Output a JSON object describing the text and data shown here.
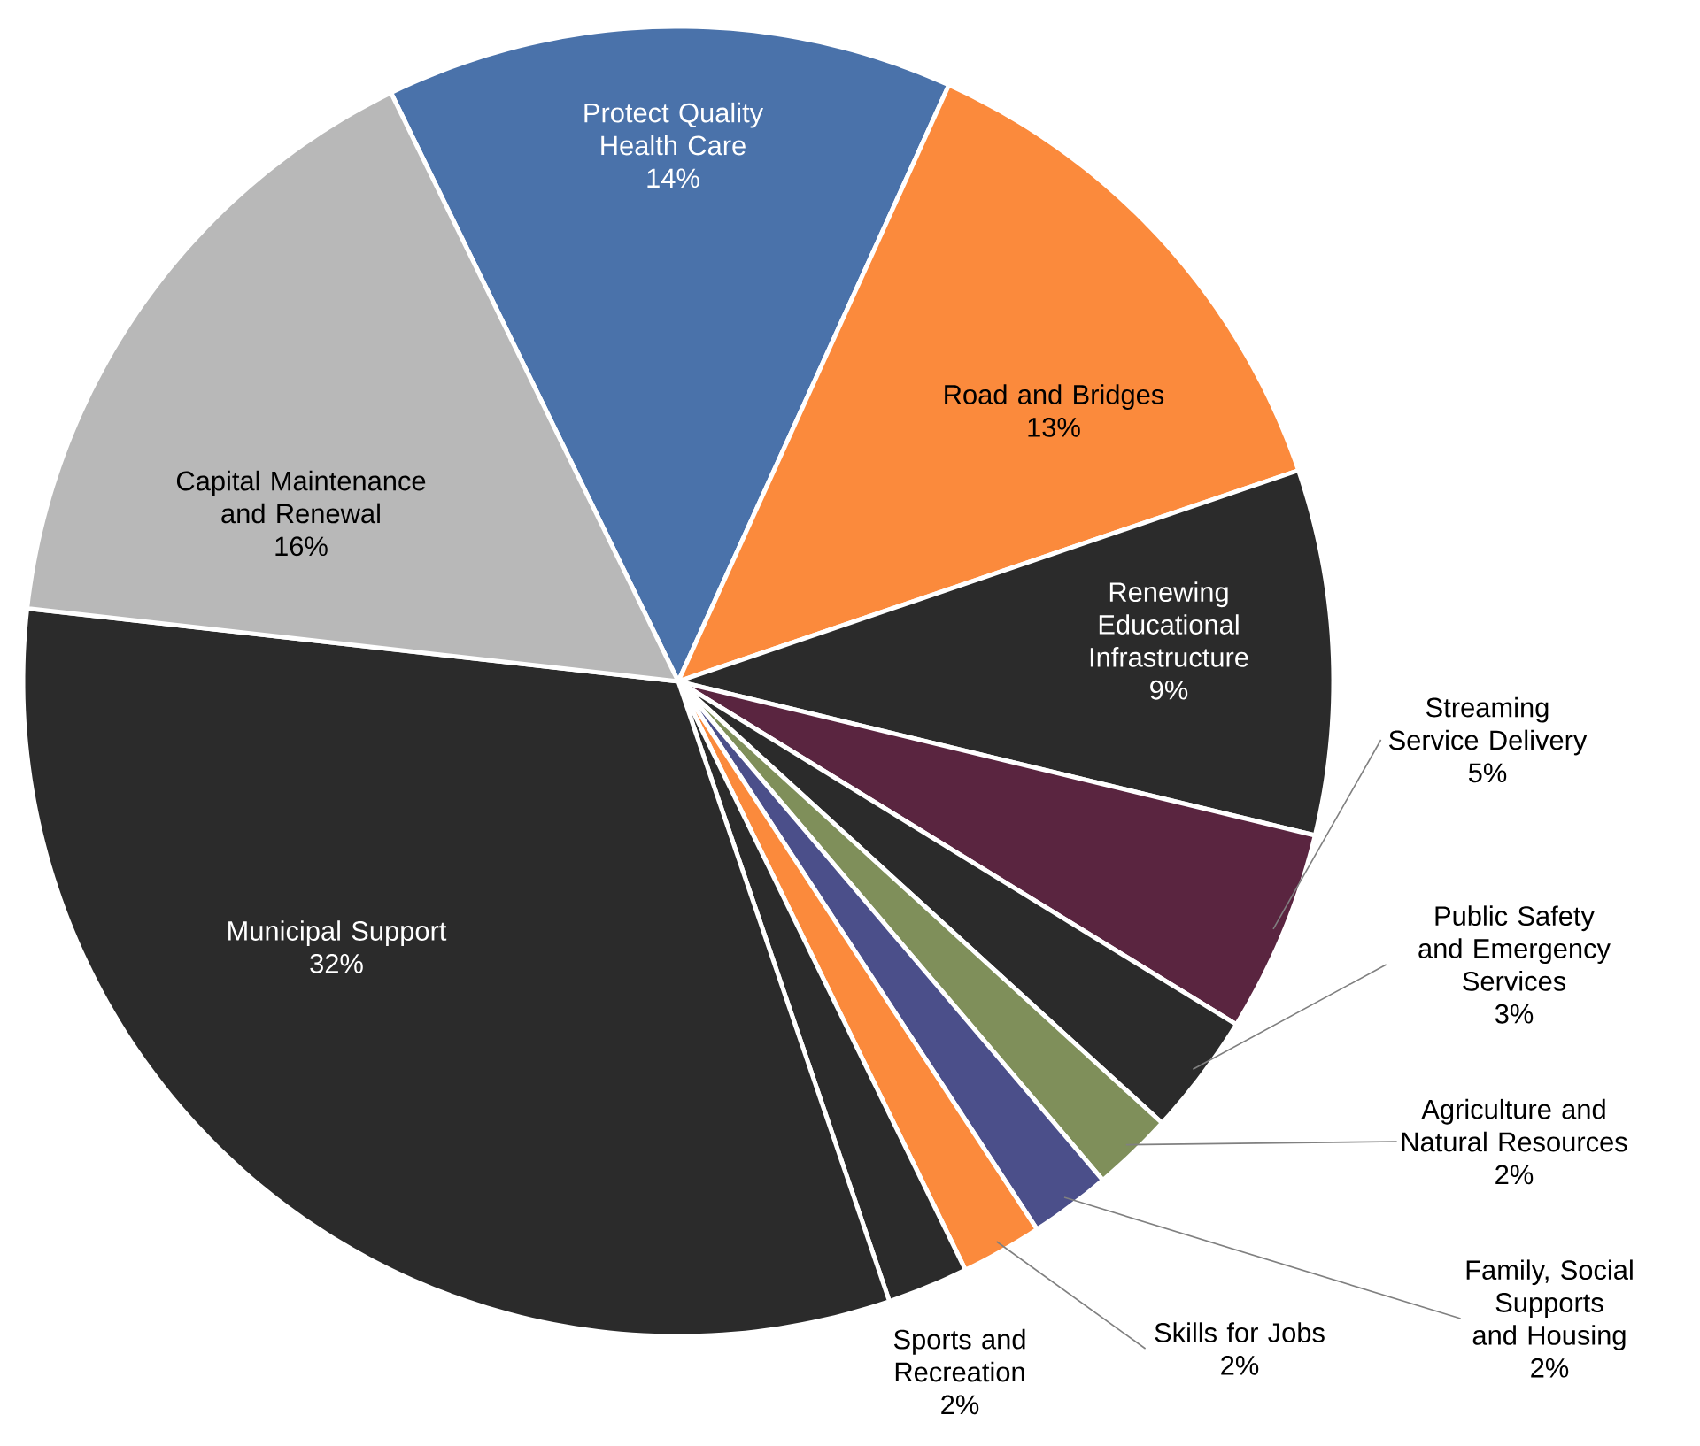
{
  "chart_data": {
    "type": "pie",
    "categories": [
      "Protect Quality Health Care",
      "Road and Bridges",
      "Renewing Educational Infrastructure",
      "Streaming Service Delivery",
      "Public Safety and Emergency Services",
      "Agriculture and Natural Resources",
      "Family, Social Supports and Housing",
      "Skills for Jobs",
      "Sports and Recreation",
      "Municipal Support",
      "Capital Maintenance and Renewal"
    ],
    "values": [
      14,
      13,
      9,
      5,
      3,
      2,
      2,
      2,
      2,
      32,
      16
    ],
    "value_labels": [
      "14%",
      "13%",
      "9%",
      "5%",
      "3%",
      "2%",
      "2%",
      "2%",
      "2%",
      "32%",
      "16%"
    ],
    "colors": [
      "#4a72aa",
      "#fb8a3c",
      "#2b2b2b",
      "#5a2540",
      "#2b2b2b",
      "#7f8f5a",
      "#4b4f8a",
      "#fb8a3c",
      "#2b2b2b",
      "#2b2b2b",
      "#b8b8b8"
    ]
  }
}
